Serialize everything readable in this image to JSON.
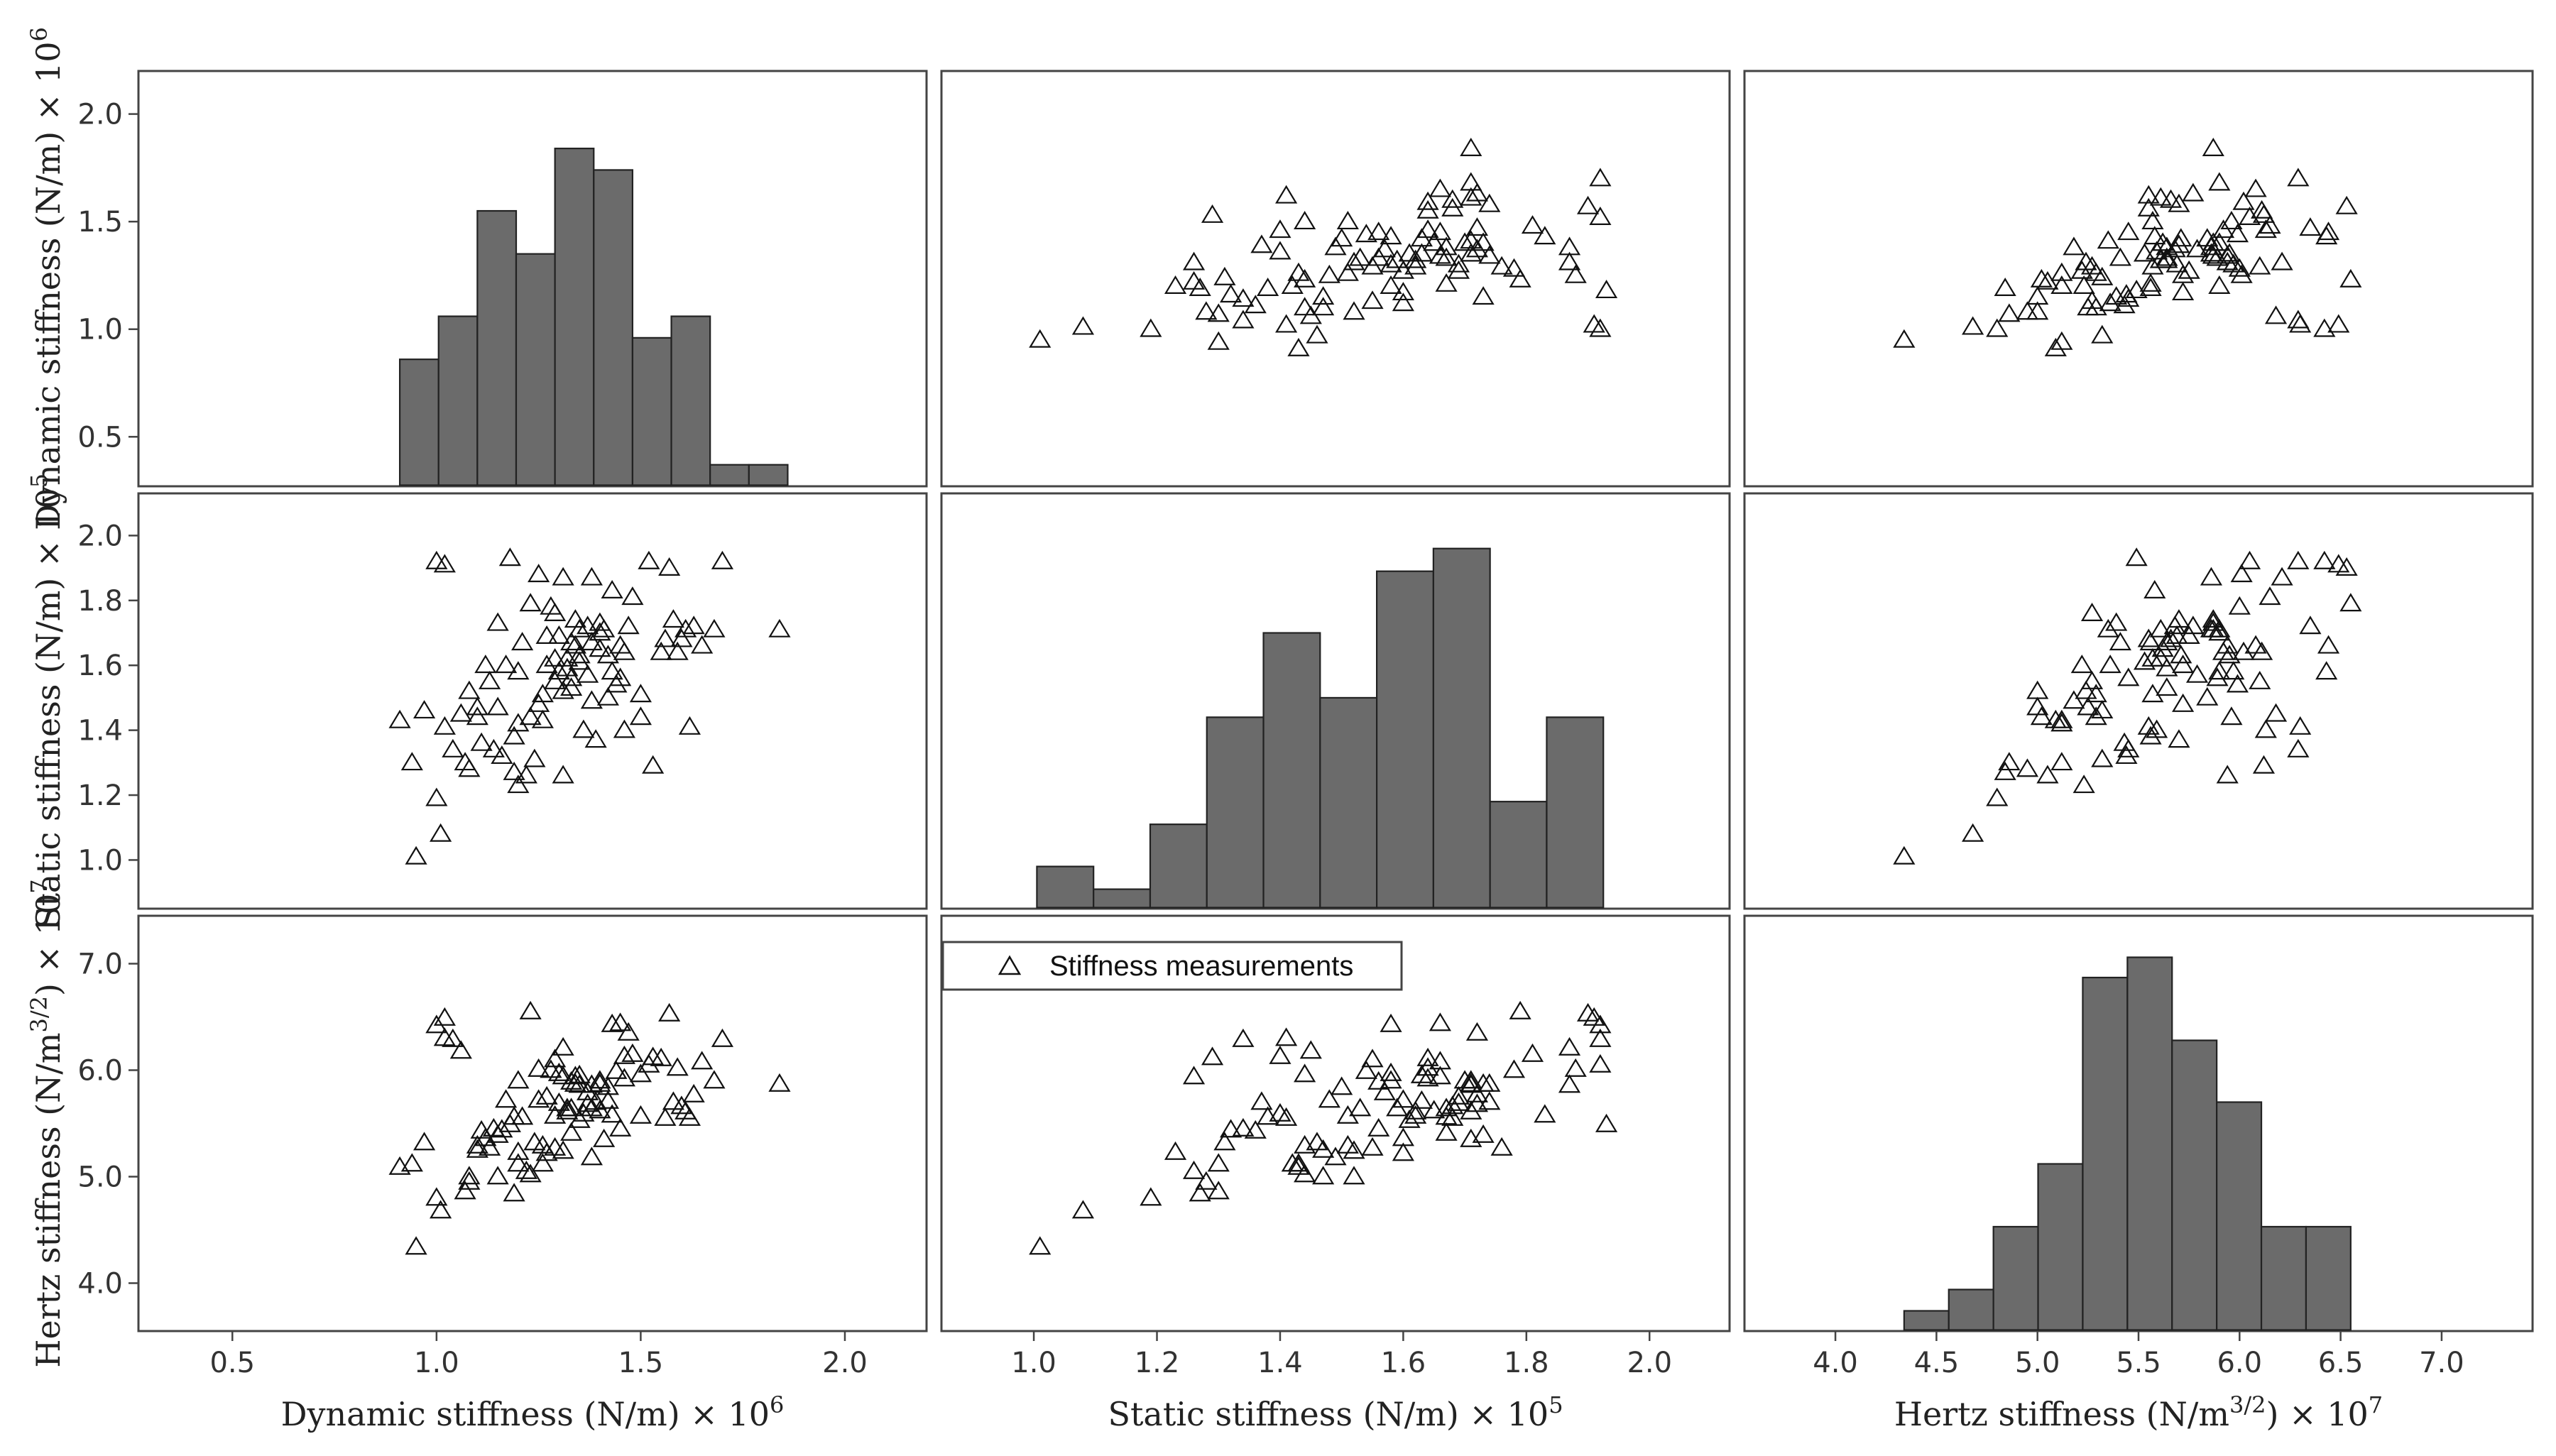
{
  "chart_data": {
    "type": "scatter-matrix",
    "colors": {
      "bar_fill": "#6b6b6b",
      "bar_edge": "#222222",
      "axis": "#444444",
      "marker": "#111111",
      "background": "#ffffff"
    },
    "variables": [
      {
        "key": "dyn",
        "name": "Dynamic stiffness",
        "xlabel": {
          "base": "Dynamic stiffness (N/m) × 10",
          "sup": "6"
        },
        "ylabel": {
          "base": "Dynamic stiffness (N/m) × 10",
          "sup": "6",
          "tail": ""
        },
        "range": [
          0.27,
          2.2
        ],
        "ticks": [
          "0.5",
          "1.0",
          "1.5",
          "2.0"
        ],
        "ytick_values": [
          0.5,
          1.0,
          1.5,
          2.0
        ]
      },
      {
        "key": "stat",
        "name": "Static stiffness",
        "xlabel": {
          "base": "Static stiffness (N/m) × 10",
          "sup": "5"
        },
        "ylabel": {
          "base": "Static stiffness (N/m) × 10",
          "sup": "5",
          "tail": ""
        },
        "range": [
          0.85,
          2.13
        ],
        "ticks": [
          "1.0",
          "1.2",
          "1.4",
          "1.6",
          "1.8",
          "2.0"
        ],
        "ytick_values": [
          1.0,
          1.2,
          1.4,
          1.6,
          1.8,
          2.0
        ]
      },
      {
        "key": "hertz",
        "name": "Hertz stiffness",
        "xlabel": {
          "base": "Hertz stiffness (N/m",
          "sup": "3/2",
          "tail": ") × 10",
          "sup2": "7"
        },
        "ylabel": {
          "base": "Hertz stiffness (N/m",
          "sup": "3/2",
          "tail": ") × 10",
          "sup2": "7"
        },
        "range": [
          3.55,
          7.45
        ],
        "ticks": [
          "4.0",
          "4.5",
          "5.0",
          "5.5",
          "6.0",
          "6.5",
          "7.0"
        ],
        "ytick_values": [
          4.0,
          5.0,
          6.0,
          7.0
        ]
      }
    ],
    "histograms": {
      "dyn": {
        "edges": [
          0.91,
          1.005,
          1.1,
          1.195,
          1.29,
          1.385,
          1.48,
          1.575,
          1.67,
          1.765,
          1.86
        ],
        "counts": [
          0.86,
          1.06,
          1.55,
          1.35,
          1.84,
          1.74,
          0.96,
          1.06,
          0.37,
          0.37
        ]
      },
      "stat": {
        "edges": [
          1.005,
          1.097,
          1.189,
          1.281,
          1.373,
          1.465,
          1.557,
          1.649,
          1.741,
          1.833,
          1.925
        ],
        "counts": [
          0.98,
          0.91,
          1.11,
          1.44,
          1.7,
          1.5,
          1.89,
          1.96,
          1.18,
          1.44
        ]
      },
      "hertz": {
        "edges": [
          4.34,
          4.561,
          4.782,
          5.003,
          5.224,
          5.445,
          5.666,
          5.887,
          6.108,
          6.329,
          6.55
        ],
        "counts": [
          3.74,
          3.94,
          4.53,
          5.12,
          6.87,
          7.06,
          6.28,
          5.7,
          4.53,
          4.53
        ]
      }
    },
    "measurements": {
      "dyn": [
        0.95,
        0.91,
        1.01,
        0.94,
        1.0,
        1.02,
        1.04,
        1.06,
        1.08,
        1.07,
        1.1,
        1.1,
        1.12,
        1.13,
        1.14,
        1.15,
        1.16,
        1.18,
        1.19,
        1.2,
        1.2,
        1.21,
        1.22,
        1.23,
        1.25,
        1.26,
        1.27,
        1.27,
        1.28,
        1.29,
        1.29,
        1.3,
        1.31,
        1.31,
        1.31,
        1.32,
        1.33,
        1.33,
        1.33,
        1.34,
        1.34,
        1.35,
        1.35,
        1.36,
        1.37,
        1.37,
        1.38,
        1.38,
        1.39,
        1.4,
        1.4,
        1.41,
        1.42,
        1.42,
        1.43,
        1.43,
        1.44,
        1.45,
        1.46,
        1.46,
        1.48,
        1.5,
        1.52,
        1.53,
        1.55,
        1.56,
        1.58,
        1.59,
        1.6,
        1.61,
        1.63,
        1.65,
        1.68,
        1.7,
        1.84,
        1.38,
        1.26,
        1.23,
        1.19,
        1.02,
        1.0,
        0.97,
        1.11,
        1.15,
        1.2,
        1.25,
        1.3,
        1.35,
        1.4,
        1.45,
        1.5,
        1.08,
        1.24,
        1.32,
        1.29,
        1.57,
        1.62,
        1.47,
        1.17
      ],
      "stat": [
        1.01,
        1.43,
        1.08,
        1.3,
        1.19,
        1.41,
        1.34,
        1.45,
        1.52,
        1.3,
        1.47,
        1.44,
        1.6,
        1.55,
        1.34,
        1.73,
        1.32,
        1.93,
        1.38,
        1.42,
        1.23,
        1.67,
        1.26,
        1.79,
        1.88,
        1.43,
        1.69,
        1.6,
        1.78,
        1.76,
        1.62,
        1.69,
        1.52,
        1.26,
        1.87,
        1.62,
        1.56,
        1.67,
        1.53,
        1.66,
        1.74,
        1.61,
        1.71,
        1.4,
        1.72,
        1.57,
        1.87,
        1.67,
        1.37,
        1.73,
        1.7,
        1.71,
        1.63,
        1.5,
        1.58,
        1.83,
        1.54,
        1.66,
        1.64,
        1.4,
        1.81,
        1.44,
        1.92,
        1.29,
        1.64,
        1.68,
        1.74,
        1.64,
        1.68,
        1.71,
        1.72,
        1.66,
        1.71,
        1.92,
        1.71,
        1.49,
        1.51,
        1.44,
        1.27,
        1.91,
        1.92,
        1.46,
        1.36,
        1.47,
        1.58,
        1.48,
        1.58,
        1.63,
        1.65,
        1.56,
        1.51,
        1.28,
        1.31,
        1.59,
        1.55,
        1.9,
        1.41,
        1.72,
        1.6
      ],
      "hertz": [
        4.34,
        5.09,
        4.68,
        5.12,
        4.8,
        6.3,
        6.29,
        6.18,
        5.0,
        4.86,
        5.25,
        5.29,
        5.36,
        5.27,
        5.45,
        5.39,
        5.44,
        5.49,
        5.56,
        5.12,
        5.23,
        5.56,
        5.05,
        6.55,
        6.01,
        5.12,
        5.75,
        5.22,
        6.0,
        5.27,
        5.57,
        5.69,
        5.24,
        5.94,
        6.21,
        5.61,
        5.89,
        5.41,
        5.64,
        5.94,
        5.87,
        5.53,
        5.86,
        5.59,
        5.68,
        5.79,
        5.86,
        5.64,
        5.7,
        5.87,
        5.9,
        5.35,
        5.71,
        5.84,
        6.43,
        5.58,
        5.99,
        6.44,
        5.92,
        6.13,
        6.15,
        5.96,
        6.05,
        6.12,
        6.11,
        5.55,
        5.7,
        6.02,
        5.66,
        5.61,
        5.77,
        6.08,
        5.9,
        6.29,
        5.87,
        5.18,
        5.29,
        5.02,
        4.84,
        6.49,
        6.42,
        5.32,
        5.43,
        5.0,
        5.9,
        5.72,
        5.97,
        5.95,
        5.62,
        5.45,
        5.57,
        4.95,
        5.32,
        5.64,
        6.1,
        6.53,
        5.55,
        6.35,
        5.72
      ]
    },
    "legend": {
      "label": "Stiffness measurements",
      "marker": "open-triangle"
    }
  }
}
